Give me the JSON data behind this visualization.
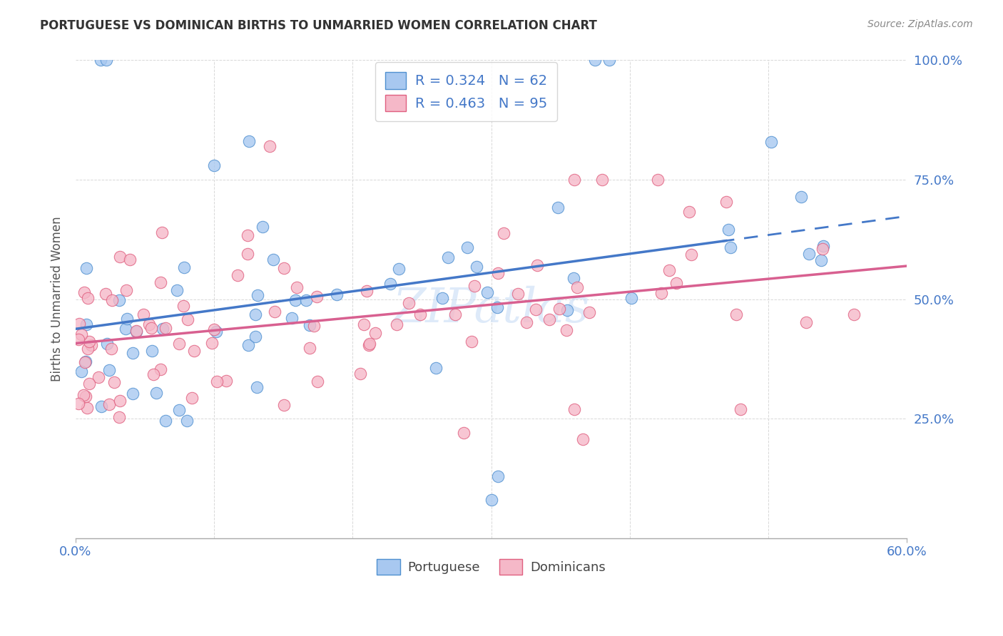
{
  "title": "PORTUGUESE VS DOMINICAN BIRTHS TO UNMARRIED WOMEN CORRELATION CHART",
  "source": "Source: ZipAtlas.com",
  "ylabel": "Births to Unmarried Women",
  "y_ticks_right": [
    25,
    50,
    75,
    100
  ],
  "y_tick_labels_right": [
    "25.0%",
    "50.0%",
    "75.0%",
    "100.0%"
  ],
  "x_tick_labels": [
    "0.0%",
    "60.0%"
  ],
  "x_tick_vals": [
    0,
    60
  ],
  "legend_line1": "R = 0.324   N = 62",
  "legend_line2": "R = 0.463   N = 95",
  "blue_fill": "#a8c8f0",
  "pink_fill": "#f5b8c8",
  "blue_edge": "#5090d0",
  "pink_edge": "#e06080",
  "line_blue": "#4478c8",
  "line_pink": "#d86090",
  "watermark_color": "#c8ddf5",
  "xlim": [
    0,
    60
  ],
  "ylim": [
    0,
    100
  ],
  "background_color": "#ffffff",
  "grid_color": "#d8d8d8",
  "right_tick_color": "#4478c8",
  "title_color": "#333333",
  "source_color": "#888888"
}
